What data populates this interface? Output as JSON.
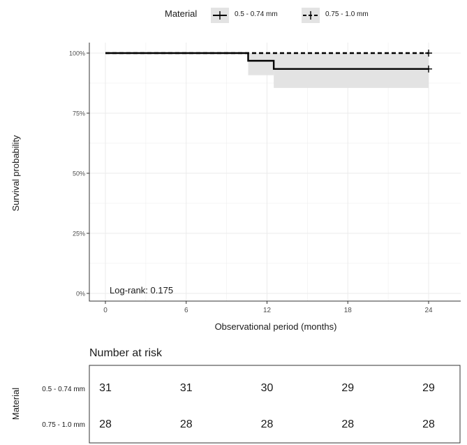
{
  "chart_data": {
    "type": "line",
    "subtype": "kaplan-meier",
    "title": "",
    "xlabel": "Observational period (months)",
    "ylabel": "Survival probability",
    "xlim": [
      0,
      24
    ],
    "ylim": [
      0,
      1
    ],
    "x_ticks": [
      0,
      6,
      12,
      18,
      24
    ],
    "x_tick_labels": [
      "0",
      "6",
      "12",
      "18",
      "24"
    ],
    "y_ticks": [
      0,
      0.25,
      0.5,
      0.75,
      1.0
    ],
    "y_tick_labels": [
      "0%",
      "25%",
      "50%",
      "75%",
      "100%"
    ],
    "grid": true,
    "legend": {
      "title": "Material",
      "position": "top",
      "entries": [
        "0.5 - 0.74 mm",
        "0.75 - 1.0 mm"
      ]
    },
    "series": [
      {
        "name": "0.5 - 0.74 mm",
        "line_style": "solid",
        "color": "#000000",
        "x": [
          0,
          10.6,
          12.5,
          24
        ],
        "y": [
          1.0,
          0.968,
          0.934,
          0.934
        ],
        "ci_lower": [
          1.0,
          0.908,
          0.855,
          0.855
        ],
        "ci_upper": [
          1.0,
          1.0,
          1.0,
          1.0
        ],
        "censored": [
          24
        ]
      },
      {
        "name": "0.75 - 1.0 mm",
        "line_style": "dashed",
        "color": "#000000",
        "x": [
          0,
          24
        ],
        "y": [
          1.0,
          1.0
        ],
        "censored": [
          24
        ]
      }
    ],
    "annotations": [
      "Log-rank: 0.175"
    ],
    "risk_table": {
      "title": "Number at risk",
      "group_label": "Material",
      "times": [
        0,
        6,
        12,
        18,
        24
      ],
      "rows": [
        {
          "name": "0.5 - 0.74 mm",
          "values": [
            "31",
            "31",
            "30",
            "29",
            "29"
          ]
        },
        {
          "name": "0.75 - 1.0 mm",
          "values": [
            "28",
            "28",
            "28",
            "28",
            "28"
          ]
        }
      ]
    }
  },
  "colors": {
    "ci_band": "#e3e3e3",
    "grid": "#ebebeb",
    "axis": "#333333",
    "text": "#1a1a1a",
    "tick_text": "#4d4d4d"
  }
}
